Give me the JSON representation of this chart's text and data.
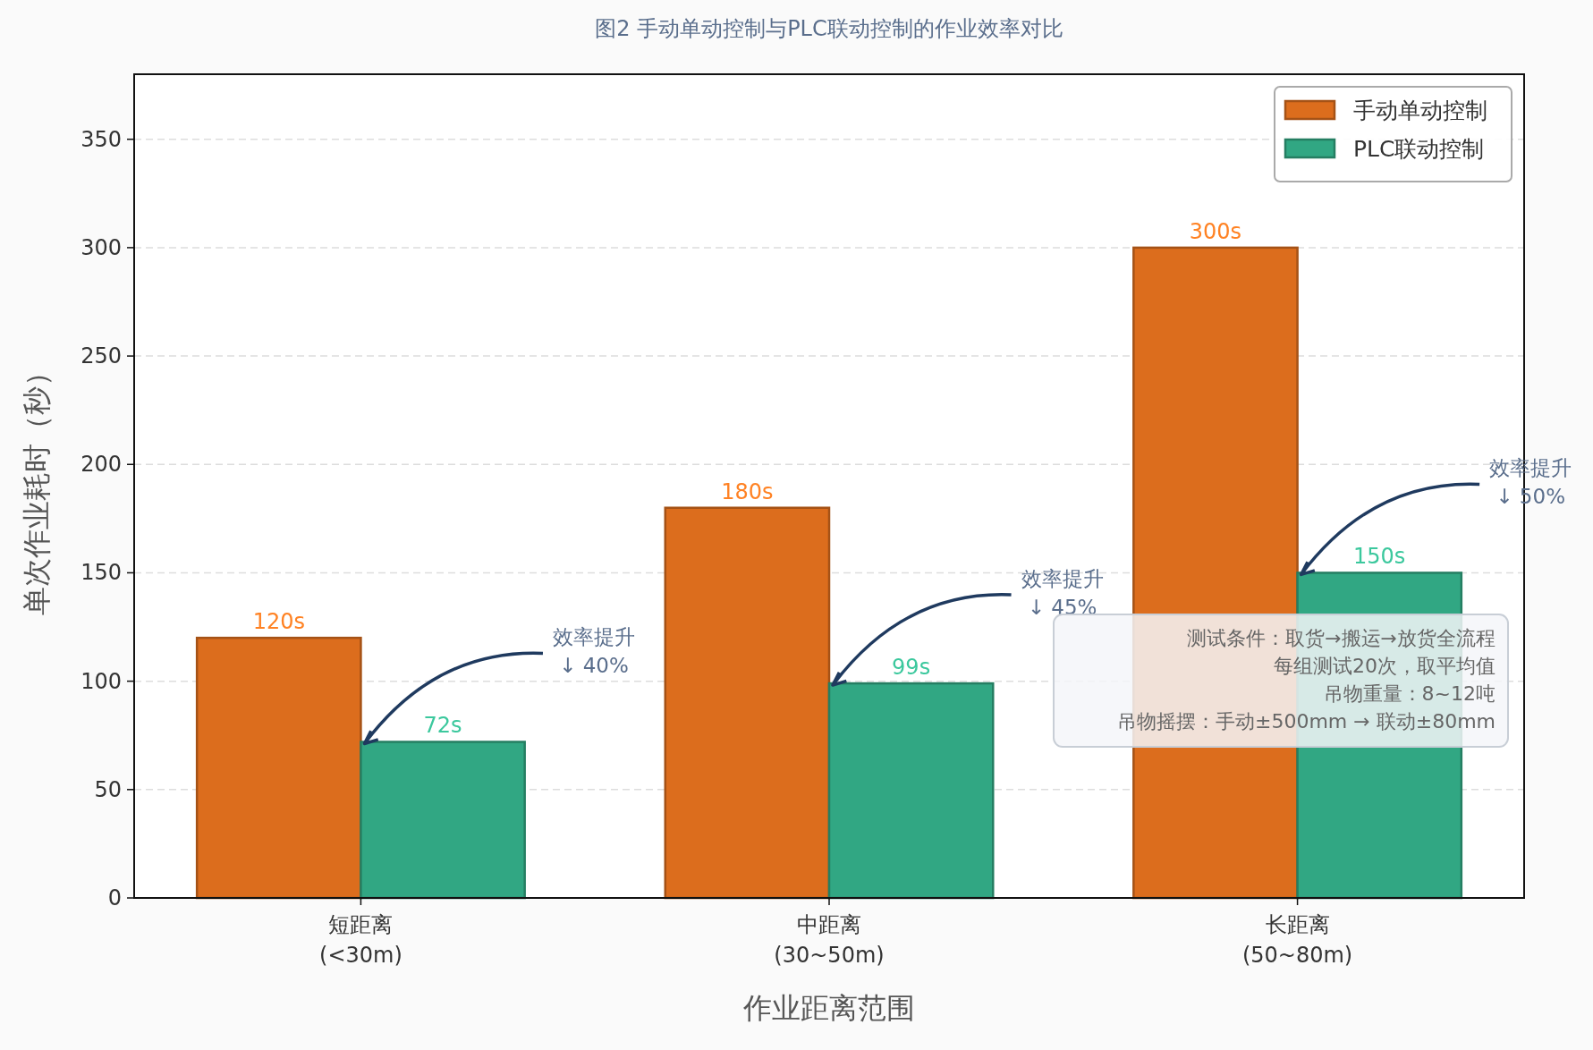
{
  "chart_data": {
    "type": "bar",
    "title": "图2 手动单动控制与PLC联动控制的作业效率对比",
    "xlabel": "作业距离范围",
    "ylabel": "单次作业耗时（秒）",
    "categories": [
      "短距离\n(<30m)",
      "中距离\n(30~50m)",
      "长距离\n(50~80m)"
    ],
    "series": [
      {
        "name": "手动单动控制",
        "color": "#dc6d1d",
        "values": [
          120,
          180,
          300
        ],
        "value_labels": [
          "120s",
          "180s",
          "300s"
        ]
      },
      {
        "name": "PLC联动控制",
        "color": "#31a783",
        "values": [
          72,
          99,
          150
        ],
        "value_labels": [
          "72s",
          "99s",
          "150s"
        ]
      }
    ],
    "ylim": [
      0,
      380
    ],
    "yticks": [
      0,
      50,
      100,
      150,
      200,
      250,
      300,
      350
    ],
    "grid": "y",
    "legend": "top right",
    "annotations": [
      {
        "text": "效率提升\n↓ 40%",
        "x": "短距离\n(<30m)",
        "y": 72
      },
      {
        "text": "效率提升\n↓ 45%",
        "x": "中距离\n(30~50m)",
        "y": 99
      },
      {
        "text": "效率提升\n↓ 50%",
        "x": "长距离\n(50~80m)",
        "y": 150
      },
      "测试条件：取货→搬运→放货全流程",
      "每组测试20次，取平均值",
      "吊物重量：8~12吨",
      "吊物摇摆：手动±500mm → 联动±80mm"
    ]
  }
}
